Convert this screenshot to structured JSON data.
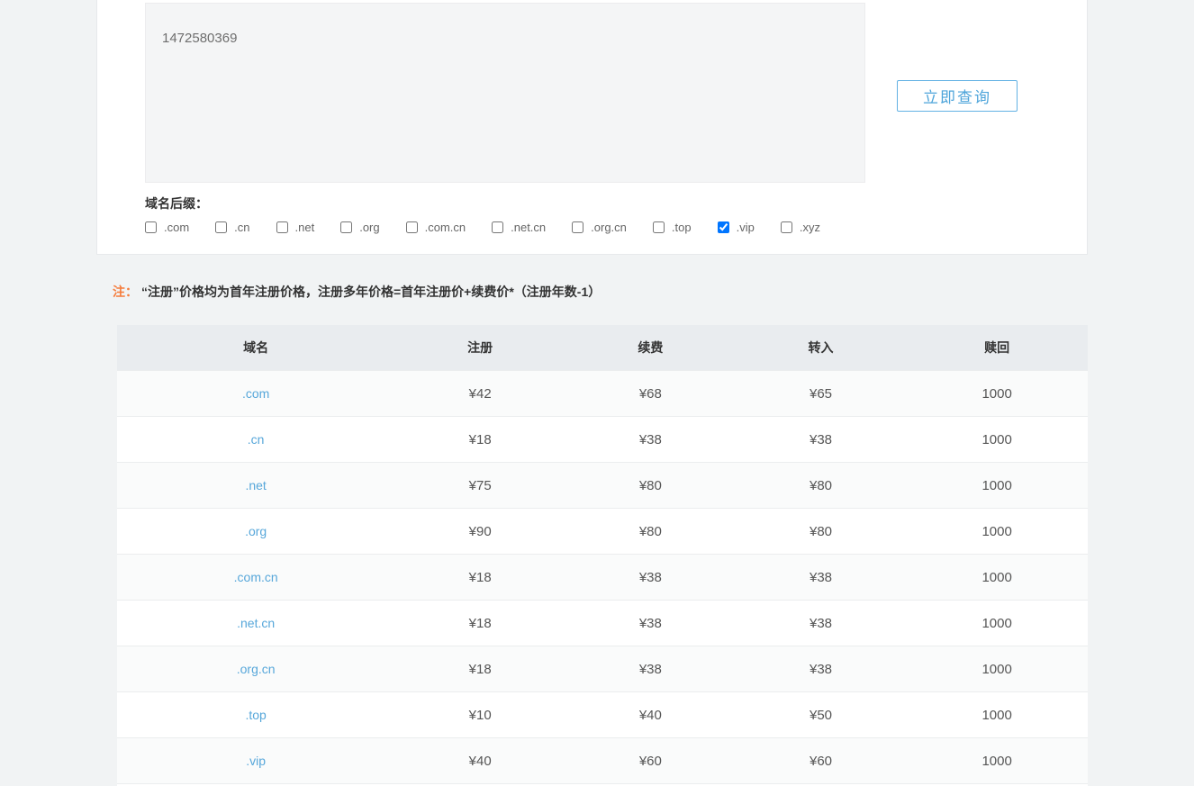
{
  "query_section": {
    "textarea_value": "1472580369",
    "search_button_label": "立即查询",
    "suffix_label": "域名后缀：",
    "suffixes": [
      {
        "label": ".com",
        "checked": false
      },
      {
        "label": ".cn",
        "checked": false
      },
      {
        "label": ".net",
        "checked": false
      },
      {
        "label": ".org",
        "checked": false
      },
      {
        "label": ".com.cn",
        "checked": false
      },
      {
        "label": ".net.cn",
        "checked": false
      },
      {
        "label": ".org.cn",
        "checked": false
      },
      {
        "label": ".top",
        "checked": false
      },
      {
        "label": ".vip",
        "checked": true
      },
      {
        "label": ".xyz",
        "checked": false
      }
    ]
  },
  "note": {
    "prefix": "注：",
    "text": "“注册”价格均为首年注册价格，注册多年价格=首年注册价+续费价*（注册年数-1）"
  },
  "price_table": {
    "columns": [
      "域名",
      "注册",
      "续费",
      "转入",
      "赎回"
    ],
    "rows": [
      {
        "domain": ".com",
        "register": "¥42",
        "renew": "¥68",
        "transfer": "¥65",
        "redeem": "1000"
      },
      {
        "domain": ".cn",
        "register": "¥18",
        "renew": "¥38",
        "transfer": "¥38",
        "redeem": "1000"
      },
      {
        "domain": ".net",
        "register": "¥75",
        "renew": "¥80",
        "transfer": "¥80",
        "redeem": "1000"
      },
      {
        "domain": ".org",
        "register": "¥90",
        "renew": "¥80",
        "transfer": "¥80",
        "redeem": "1000"
      },
      {
        "domain": ".com.cn",
        "register": "¥18",
        "renew": "¥38",
        "transfer": "¥38",
        "redeem": "1000"
      },
      {
        "domain": ".net.cn",
        "register": "¥18",
        "renew": "¥38",
        "transfer": "¥38",
        "redeem": "1000"
      },
      {
        "domain": ".org.cn",
        "register": "¥18",
        "renew": "¥38",
        "transfer": "¥38",
        "redeem": "1000"
      },
      {
        "domain": ".top",
        "register": "¥10",
        "renew": "¥40",
        "transfer": "¥50",
        "redeem": "1000"
      },
      {
        "domain": ".vip",
        "register": "¥40",
        "renew": "¥60",
        "transfer": "¥60",
        "redeem": "1000"
      }
    ]
  },
  "colors": {
    "accent_blue": "#4da4da",
    "button_border": "#62b1e3",
    "link_blue": "#57a7da",
    "note_orange": "#f57c3c",
    "table_header_bg": "#e9ecef",
    "row_alt_bg": "#fafbfb",
    "row_border": "#ebedee",
    "page_bg": "#f1f3f4",
    "card_bg": "#ffffff",
    "textarea_bg": "#f4f5f6"
  }
}
